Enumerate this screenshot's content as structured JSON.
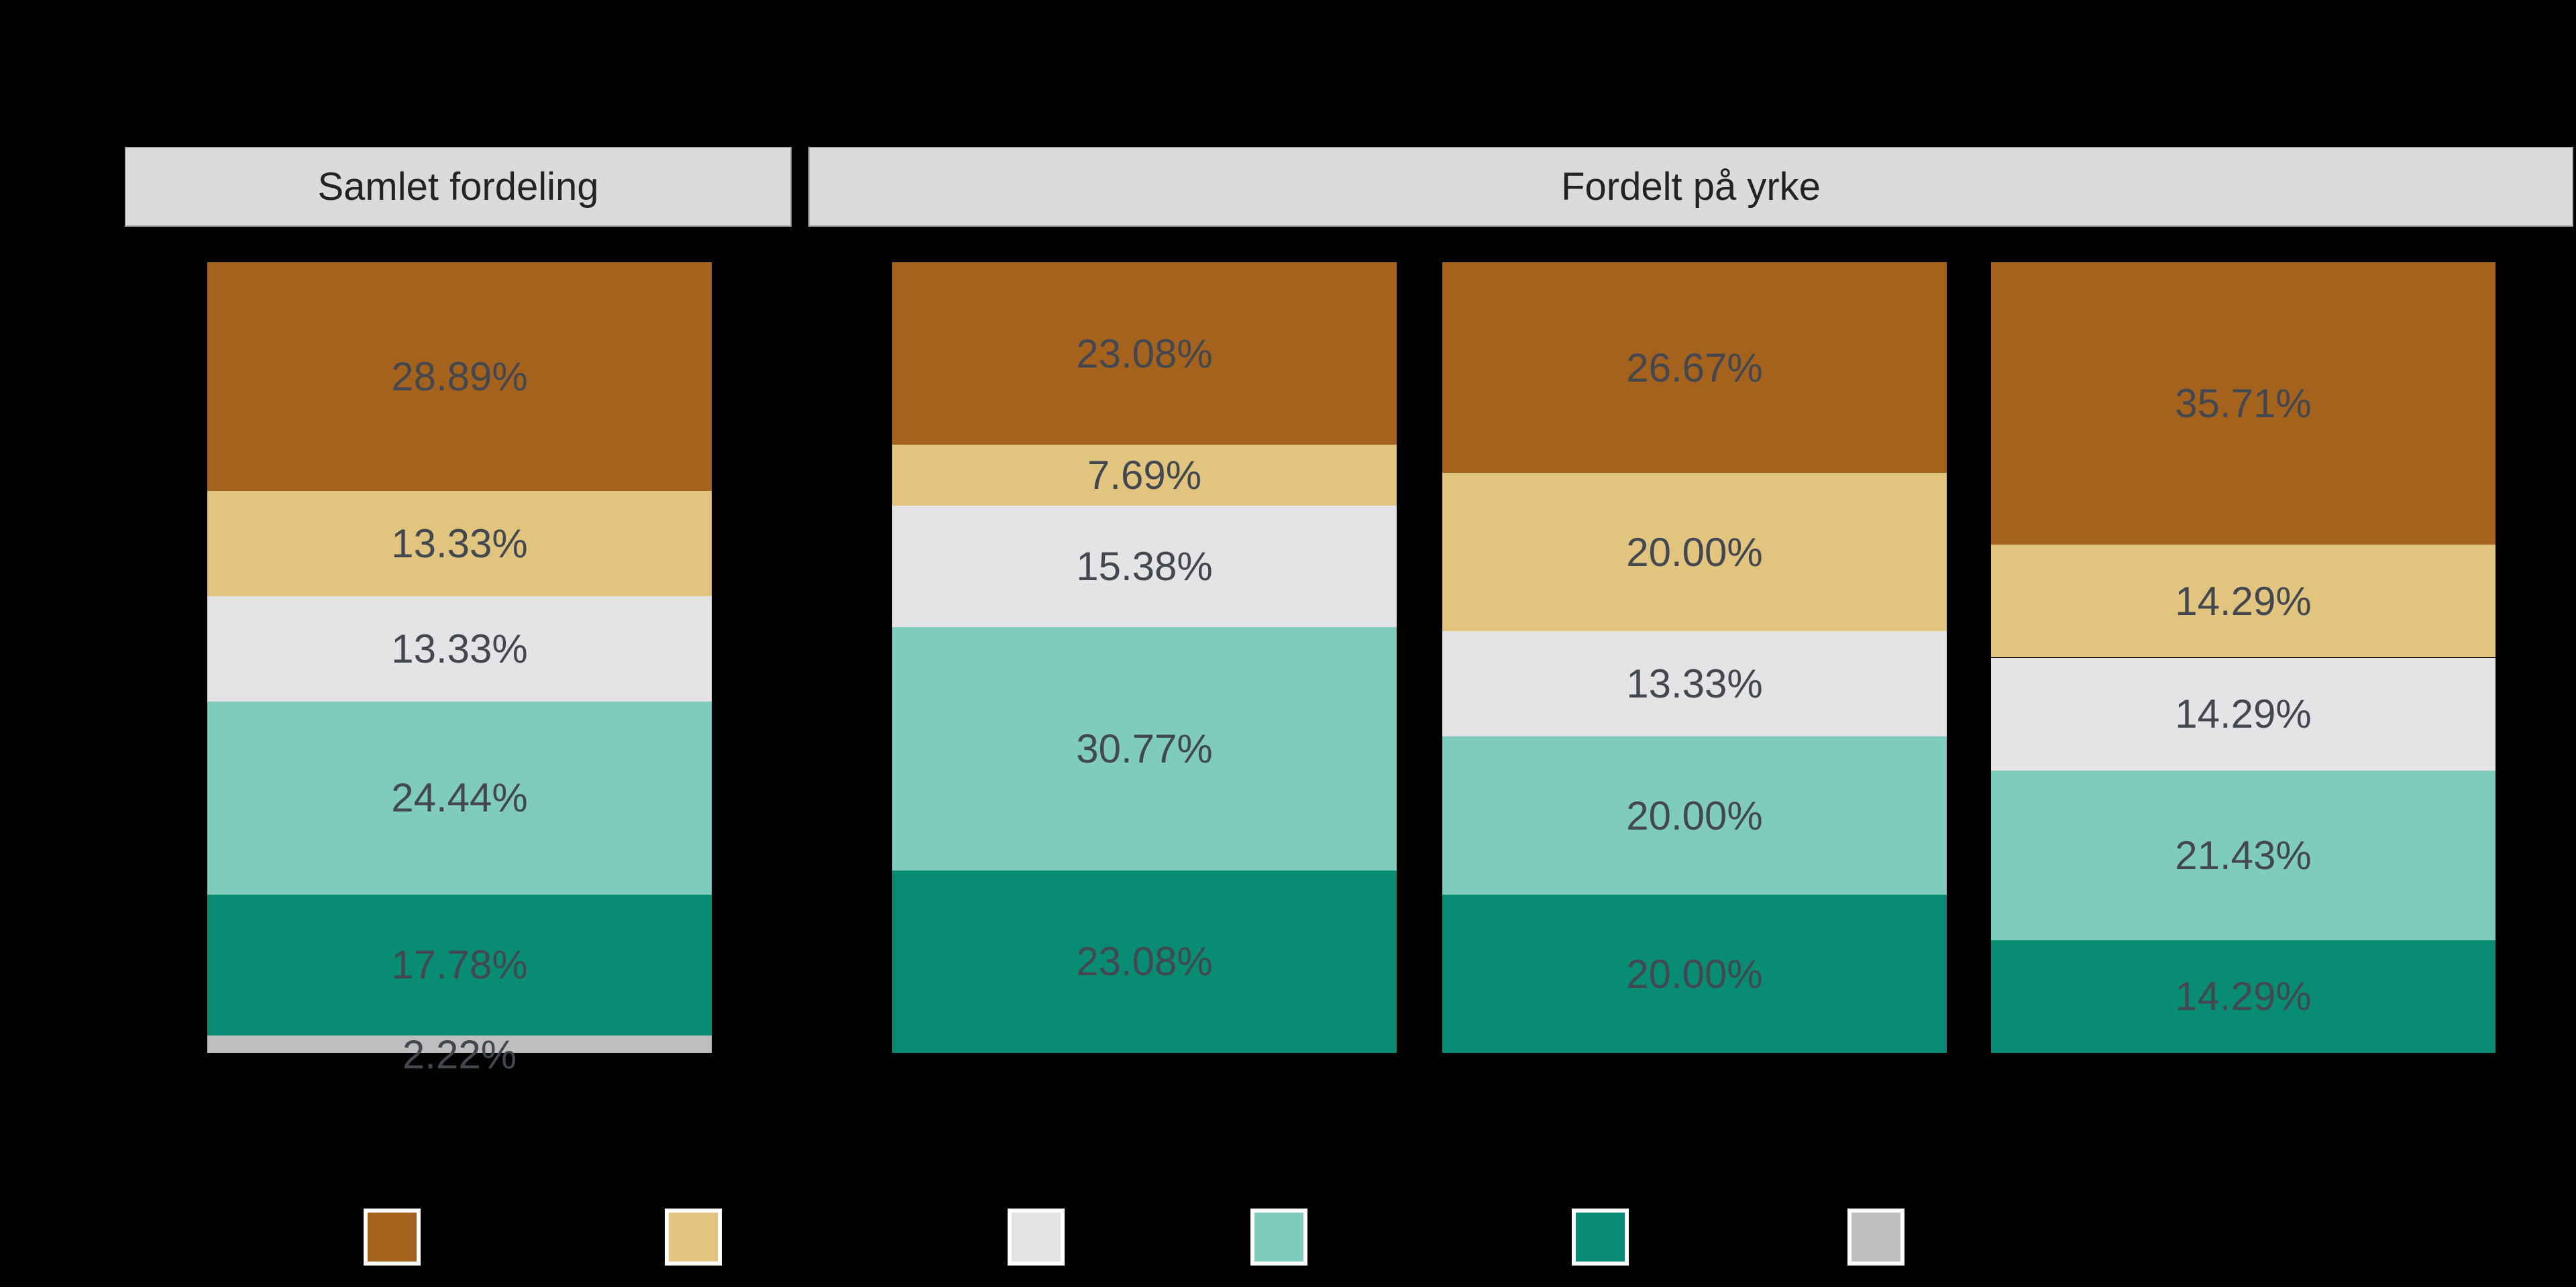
{
  "background_color": "#000000",
  "panels": [
    {
      "label": "Samlet fordeling"
    },
    {
      "label": "Fordelt på yrke"
    }
  ],
  "colors": {
    "header_bg": "#DBDBDB",
    "header_text": "#232323",
    "segment_label_text": "#43474F",
    "brown": "#A5621D",
    "tan": "#E1C47E",
    "light_gray": "#E4E3E5",
    "light_teal": "#7FCCBC",
    "dark_teal": "#088C74",
    "gray": "#BEBDBF",
    "legend_swatch_border": "#FFFFFF"
  },
  "chart_data": {
    "type": "bar",
    "variant": "stacked-percentage-columns",
    "panel_titles": [
      "Samlet fordeling",
      "Fordelt på yrke"
    ],
    "panel_assignment_of_bars": [
      0,
      1,
      1,
      1
    ],
    "bar_count": 4,
    "value_suffix": "%",
    "series": [
      {
        "name": "brown-segment",
        "color": "#A5621D",
        "values": [
          28.89,
          23.08,
          26.67,
          35.71
        ]
      },
      {
        "name": "tan-segment",
        "color": "#E1C47E",
        "values": [
          13.33,
          7.69,
          20.0,
          14.29
        ]
      },
      {
        "name": "light-gray-segment",
        "color": "#E4E3E5",
        "values": [
          13.33,
          15.38,
          13.33,
          14.29
        ]
      },
      {
        "name": "light-teal-segment",
        "color": "#7FCCBC",
        "values": [
          24.44,
          30.77,
          20.0,
          21.43
        ]
      },
      {
        "name": "dark-teal-segment",
        "color": "#088C74",
        "values": [
          17.78,
          23.08,
          20.0,
          14.29
        ]
      },
      {
        "name": "gray-segment",
        "color": "#BEBDBF",
        "values": [
          2.22,
          0,
          0,
          0
        ]
      }
    ],
    "bar_labels": [
      [
        "28.89%",
        "13.33%",
        "13.33%",
        "24.44%",
        "17.78%",
        "2.22%"
      ],
      [
        "23.08%",
        "7.69%",
        "15.38%",
        "30.77%",
        "23.08%"
      ],
      [
        "26.67%",
        "20.00%",
        "13.33%",
        "20.00%",
        "20.00%"
      ],
      [
        "35.71%",
        "14.29%",
        "14.29%",
        "21.43%",
        "14.29%"
      ]
    ],
    "ylim": [
      0,
      100
    ],
    "grid": false,
    "legend_position": "bottom"
  },
  "legend": {
    "swatch_colors": [
      "#A5621D",
      "#E1C47E",
      "#E4E3E5",
      "#7FCCBC",
      "#088C74",
      "#BEBDBF"
    ]
  }
}
